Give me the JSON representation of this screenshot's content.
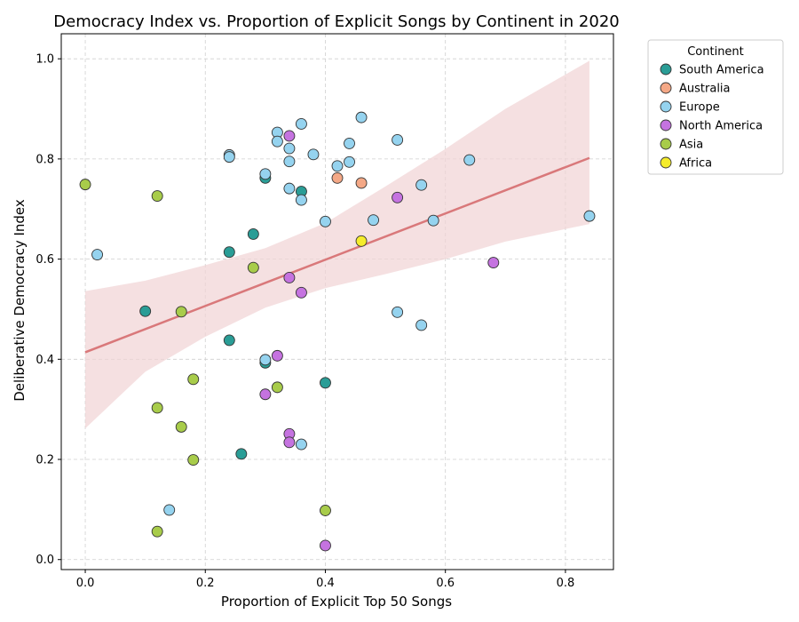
{
  "chart_data": {
    "type": "scatter",
    "title": "Democracy Index vs. Proportion of Explicit Songs by Continent in 2020",
    "xlabel": "Proportion of Explicit Top 50 Songs",
    "ylabel": "Deliberative Democracy Index",
    "xlim": [
      -0.04,
      0.88
    ],
    "ylim": [
      -0.02,
      1.05
    ],
    "xticks": [
      0.0,
      0.2,
      0.4,
      0.6,
      0.8
    ],
    "xtick_labels": [
      "0.0",
      "0.2",
      "0.4",
      "0.6",
      "0.8"
    ],
    "yticks": [
      0.0,
      0.2,
      0.4,
      0.6,
      0.8,
      1.0
    ],
    "ytick_labels": [
      "0.0",
      "0.2",
      "0.4",
      "0.6",
      "0.8",
      "1.0"
    ],
    "grid": true,
    "legend": {
      "title": "Continent",
      "placement": "outside-top-right"
    },
    "regression": {
      "x": [
        0.0,
        0.84
      ],
      "y": [
        0.414,
        0.802
      ],
      "band_x": [
        0.0,
        0.1,
        0.2,
        0.3,
        0.4,
        0.5,
        0.6,
        0.7,
        0.84
      ],
      "band_upper": [
        0.536,
        0.557,
        0.588,
        0.622,
        0.672,
        0.745,
        0.82,
        0.9,
        0.996
      ],
      "band_lower": [
        0.262,
        0.375,
        0.445,
        0.503,
        0.542,
        0.57,
        0.6,
        0.635,
        0.67
      ],
      "line_color": "#d9787a",
      "band_color": "#f1d3d4"
    },
    "series": [
      {
        "name": "South America",
        "color": "#2a9d96",
        "points": [
          [
            0.1,
            0.496
          ],
          [
            0.24,
            0.614
          ],
          [
            0.24,
            0.438
          ],
          [
            0.26,
            0.211
          ],
          [
            0.28,
            0.65
          ],
          [
            0.3,
            0.762
          ],
          [
            0.3,
            0.393
          ],
          [
            0.36,
            0.735
          ],
          [
            0.4,
            0.353
          ]
        ]
      },
      {
        "name": "Australia",
        "color": "#f4a886",
        "points": [
          [
            0.42,
            0.762
          ],
          [
            0.46,
            0.752
          ]
        ]
      },
      {
        "name": "Europe",
        "color": "#95d3ef",
        "points": [
          [
            0.02,
            0.609
          ],
          [
            0.14,
            0.099
          ],
          [
            0.24,
            0.808
          ],
          [
            0.24,
            0.804
          ],
          [
            0.3,
            0.77
          ],
          [
            0.3,
            0.399
          ],
          [
            0.32,
            0.853
          ],
          [
            0.32,
            0.835
          ],
          [
            0.34,
            0.821
          ],
          [
            0.34,
            0.795
          ],
          [
            0.34,
            0.741
          ],
          [
            0.36,
            0.87
          ],
          [
            0.36,
            0.718
          ],
          [
            0.36,
            0.23
          ],
          [
            0.38,
            0.809
          ],
          [
            0.4,
            0.675
          ],
          [
            0.42,
            0.786
          ],
          [
            0.44,
            0.831
          ],
          [
            0.44,
            0.794
          ],
          [
            0.46,
            0.883
          ],
          [
            0.48,
            0.678
          ],
          [
            0.52,
            0.838
          ],
          [
            0.52,
            0.494
          ],
          [
            0.56,
            0.748
          ],
          [
            0.56,
            0.468
          ],
          [
            0.58,
            0.677
          ],
          [
            0.64,
            0.798
          ],
          [
            0.84,
            0.686
          ]
        ]
      },
      {
        "name": "North America",
        "color": "#c573e0",
        "points": [
          [
            0.3,
            0.33
          ],
          [
            0.32,
            0.407
          ],
          [
            0.34,
            0.846
          ],
          [
            0.34,
            0.563
          ],
          [
            0.34,
            0.251
          ],
          [
            0.34,
            0.234
          ],
          [
            0.36,
            0.533
          ],
          [
            0.4,
            0.028
          ],
          [
            0.52,
            0.723
          ],
          [
            0.68,
            0.593
          ]
        ]
      },
      {
        "name": "Asia",
        "color": "#a8cc4a",
        "points": [
          [
            0.0,
            0.749
          ],
          [
            0.12,
            0.726
          ],
          [
            0.12,
            0.303
          ],
          [
            0.12,
            0.056
          ],
          [
            0.16,
            0.495
          ],
          [
            0.16,
            0.265
          ],
          [
            0.18,
            0.36
          ],
          [
            0.18,
            0.199
          ],
          [
            0.28,
            0.583
          ],
          [
            0.32,
            0.344
          ],
          [
            0.4,
            0.098
          ]
        ]
      },
      {
        "name": "Africa",
        "color": "#f5ec2b",
        "points": [
          [
            0.46,
            0.636
          ]
        ]
      }
    ]
  }
}
